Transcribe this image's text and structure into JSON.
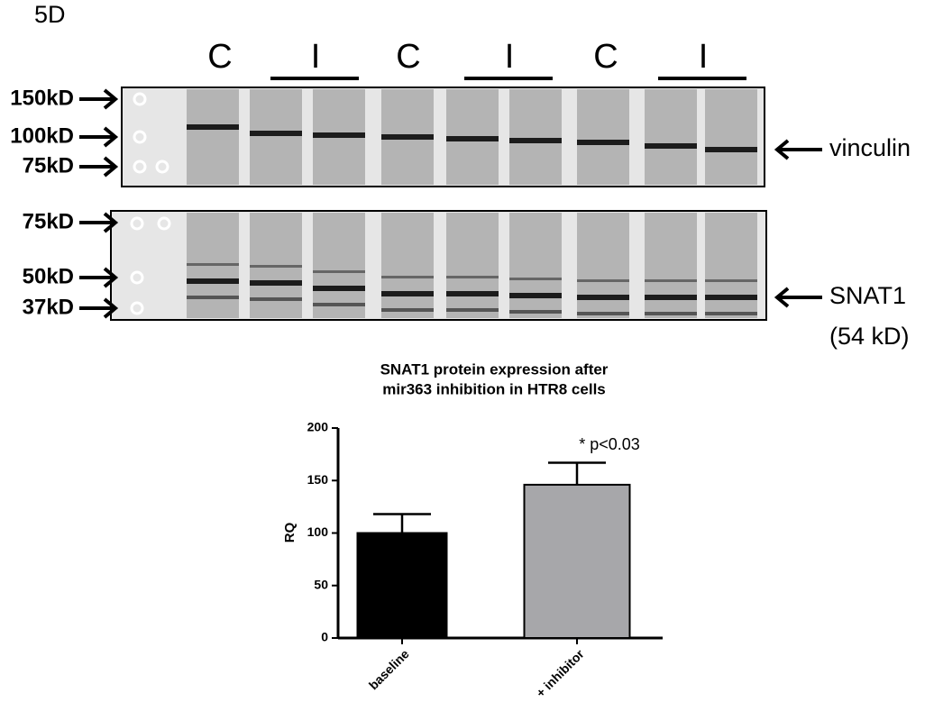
{
  "panel_label": "5D",
  "lanes": [
    "C",
    "I",
    "C",
    "I",
    "C",
    "I"
  ],
  "blots": [
    {
      "markers": [
        "150kD",
        "100kD",
        "75kD"
      ],
      "target": "vinculin"
    },
    {
      "markers": [
        "75kD",
        "50kD",
        "37kD"
      ],
      "target": "SNAT1",
      "target_note": "(54 kD)"
    }
  ],
  "chart_data": {
    "type": "bar",
    "title": [
      "SNAT1 protein expression after",
      "mir363 inhibition in HTR8 cells"
    ],
    "ylabel": "RQ",
    "categories": [
      "baseline",
      "+ inhibitor"
    ],
    "values": [
      100,
      146
    ],
    "errors": [
      18,
      21
    ],
    "colors": [
      "#000000",
      "#a7a7aa"
    ],
    "ylim": [
      0,
      200
    ],
    "yticks": [
      0,
      50,
      100,
      150,
      200
    ],
    "annotation": "* p<0.03"
  }
}
